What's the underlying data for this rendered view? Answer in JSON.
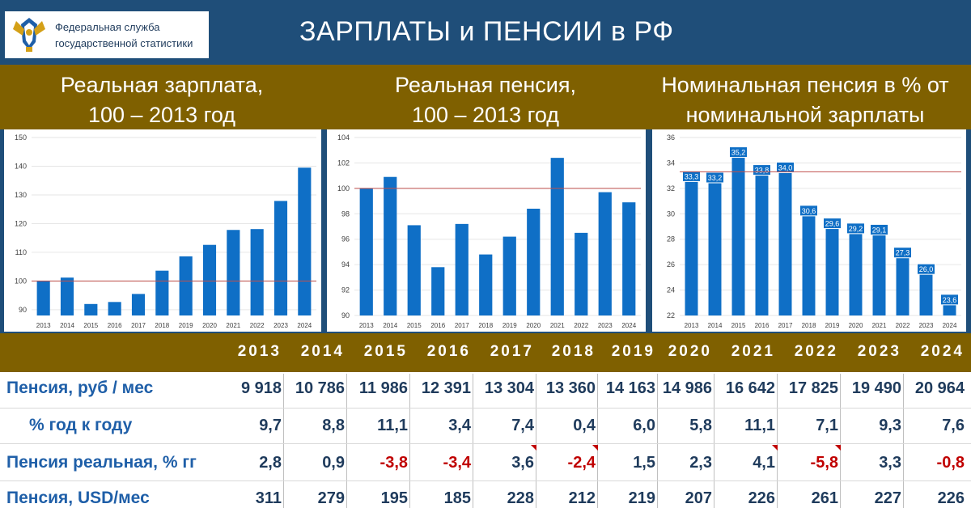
{
  "header": {
    "org_line1": "Федеральная служба",
    "org_line2": "государственной статистики",
    "title": "ЗАРПЛАТЫ и ПЕНСИИ в РФ"
  },
  "panels": [
    {
      "line1": "Реальная зарплата,",
      "line2": "100 – 2013 год"
    },
    {
      "line1": "Реальная пенсия,",
      "line2": "100 – 2013 год"
    },
    {
      "line1": "Номинальная пенсия в % от",
      "line2": "номинальной зарплаты"
    }
  ],
  "colors": {
    "bar": "#0f6fc6",
    "reference_line": "#c0504d",
    "band": "#7f6000",
    "header": "#1f4e79",
    "negative": "#c00000"
  },
  "chart_data": [
    {
      "type": "bar",
      "categories": [
        "2013",
        "2014",
        "2015",
        "2016",
        "2017",
        "2018",
        "2019",
        "2020",
        "2021",
        "2022",
        "2023",
        "2024"
      ],
      "values": [
        100.0,
        101.2,
        92.0,
        92.7,
        95.5,
        103.6,
        108.6,
        112.6,
        117.8,
        118.1,
        127.9,
        139.5
      ],
      "ylim": [
        88,
        150
      ],
      "yticks": [
        90,
        100,
        110,
        120,
        130,
        140,
        150
      ],
      "reference_line": 100,
      "show_data_labels": false,
      "data_labels": []
    },
    {
      "type": "bar",
      "categories": [
        "2013",
        "2014",
        "2015",
        "2016",
        "2017",
        "2018",
        "2019",
        "2020",
        "2021",
        "2022",
        "2023",
        "2024"
      ],
      "values": [
        100.0,
        100.9,
        97.1,
        93.8,
        97.2,
        94.8,
        96.2,
        98.4,
        102.4,
        96.5,
        99.7,
        98.9
      ],
      "ylim": [
        90,
        104
      ],
      "yticks": [
        90,
        92,
        94,
        96,
        98,
        100,
        102,
        104
      ],
      "reference_line": 100,
      "show_data_labels": false,
      "data_labels": []
    },
    {
      "type": "bar",
      "categories": [
        "2013",
        "2014",
        "2015",
        "2016",
        "2017",
        "2018",
        "2019",
        "2020",
        "2021",
        "2022",
        "2023",
        "2024"
      ],
      "values": [
        33.3,
        33.2,
        35.2,
        33.8,
        34.0,
        30.6,
        29.6,
        29.2,
        29.1,
        27.3,
        26.0,
        23.6
      ],
      "ylim": [
        22,
        36
      ],
      "yticks": [
        22,
        24,
        26,
        28,
        30,
        32,
        34,
        36
      ],
      "reference_line": 33.3,
      "show_data_labels": true,
      "data_labels": [
        "33,3",
        "33,2",
        "35,2",
        "33,8",
        "34,0",
        "30,6",
        "29,6",
        "29,2",
        "29,1",
        "27,3",
        "26,0",
        "23,6"
      ]
    }
  ],
  "table": {
    "years": [
      "2013",
      "2014",
      "2015",
      "2016",
      "2017",
      "2018",
      "2019",
      "2020",
      "2021",
      "2022",
      "2023",
      "2024"
    ],
    "rows": [
      {
        "label": "Пенсия, руб / мес",
        "indent": false,
        "values": [
          "9 918",
          "10 786",
          "11 986",
          "12 391",
          "13 304",
          "13 360",
          "14 163",
          "14 986",
          "16 642",
          "17 825",
          "19 490",
          "20 964"
        ],
        "negative": [
          false,
          false,
          false,
          false,
          false,
          false,
          false,
          false,
          false,
          false,
          false,
          false
        ]
      },
      {
        "label": "% год к году",
        "indent": true,
        "values": [
          "9,7",
          "8,8",
          "11,1",
          "3,4",
          "7,4",
          "0,4",
          "6,0",
          "5,8",
          "11,1",
          "7,1",
          "9,3",
          "7,6"
        ],
        "negative": [
          false,
          false,
          false,
          false,
          false,
          false,
          false,
          false,
          false,
          false,
          false,
          false
        ]
      },
      {
        "label": "Пенсия реальная, % гг",
        "indent": false,
        "values": [
          "2,8",
          "0,9",
          "-3,8",
          "-3,4",
          "3,6",
          "-2,4",
          "1,5",
          "2,3",
          "4,1",
          "-5,8",
          "3,3",
          "-0,8"
        ],
        "negative": [
          false,
          false,
          true,
          true,
          false,
          true,
          false,
          false,
          false,
          true,
          false,
          true
        ]
      },
      {
        "label": "Пенсия, USD/мес",
        "indent": false,
        "values": [
          "311",
          "279",
          "195",
          "185",
          "228",
          "212",
          "219",
          "207",
          "226",
          "261",
          "227",
          "226"
        ],
        "negative": [
          false,
          false,
          false,
          false,
          false,
          false,
          false,
          false,
          false,
          false,
          false,
          false
        ]
      }
    ]
  }
}
